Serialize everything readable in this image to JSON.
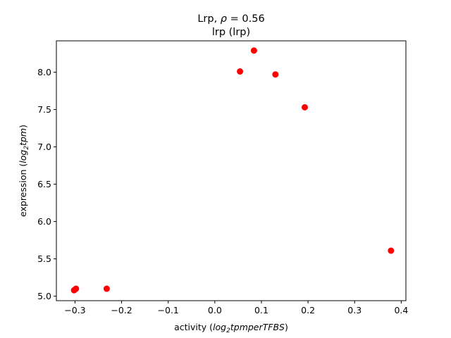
{
  "chart_data": {
    "type": "scatter",
    "title_prefix": "Lrp, ",
    "title_rho_symbol": "ρ",
    "title_rho_value": " = 0.56",
    "subtitle": "lrp (lrp)",
    "xlabel_prefix": "activity (",
    "xlabel_math": "log",
    "xlabel_sub": "2",
    "xlabel_math2": "tpmperTFBS",
    "xlabel_suffix": ")",
    "ylabel_prefix": "expression (",
    "ylabel_math": "log",
    "ylabel_sub": "2",
    "ylabel_math2": "tpm",
    "ylabel_suffix": ")",
    "xlim": [
      -0.34,
      0.41
    ],
    "ylim": [
      4.94,
      8.42
    ],
    "xticks": [
      -0.3,
      -0.2,
      -0.1,
      0.0,
      0.1,
      0.2,
      0.3,
      0.4
    ],
    "xtick_labels": [
      "−0.3",
      "−0.2",
      "−0.1",
      "0.0",
      "0.1",
      "0.2",
      "0.3",
      "0.4"
    ],
    "yticks": [
      5.0,
      5.5,
      6.0,
      6.5,
      7.0,
      7.5,
      8.0
    ],
    "ytick_labels": [
      "5.0",
      "5.5",
      "6.0",
      "6.5",
      "7.0",
      "7.5",
      "8.0"
    ],
    "grid": false,
    "point_color": "#ff0000",
    "points": [
      {
        "x": -0.302,
        "y": 5.08
      },
      {
        "x": -0.298,
        "y": 5.1
      },
      {
        "x": -0.232,
        "y": 5.1
      },
      {
        "x": 0.054,
        "y": 8.01
      },
      {
        "x": 0.084,
        "y": 8.29
      },
      {
        "x": 0.13,
        "y": 7.97
      },
      {
        "x": 0.193,
        "y": 7.53
      },
      {
        "x": 0.378,
        "y": 5.61
      }
    ]
  }
}
